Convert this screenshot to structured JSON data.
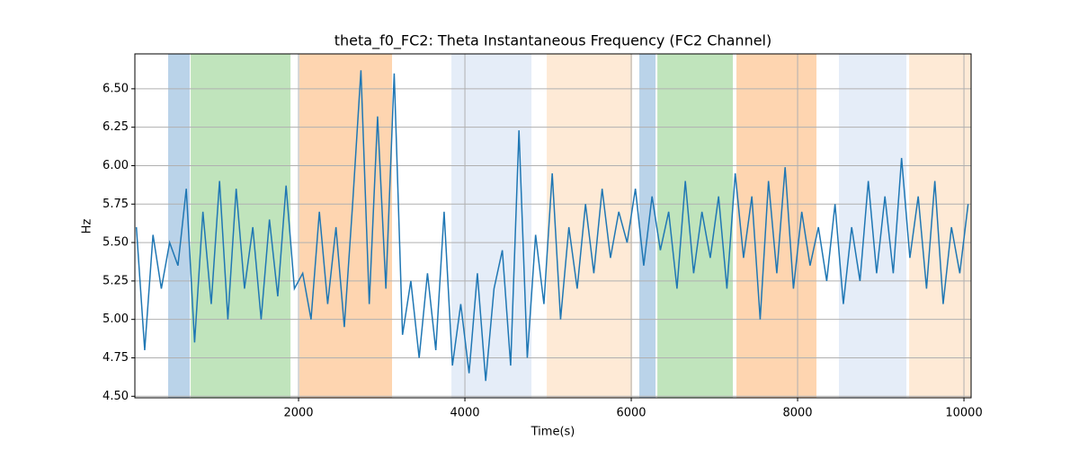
{
  "chart_data": {
    "type": "line",
    "title": "theta_f0_FC2: Theta Instantaneous Frequency (FC2 Channel)",
    "xlabel": "Time(s)",
    "ylabel": "Hz",
    "x": [
      50,
      150,
      250,
      350,
      450,
      550,
      650,
      750,
      850,
      950,
      1050,
      1150,
      1250,
      1350,
      1450,
      1550,
      1650,
      1750,
      1850,
      1950,
      2050,
      2150,
      2250,
      2350,
      2450,
      2550,
      2650,
      2750,
      2850,
      2950,
      3050,
      3150,
      3250,
      3350,
      3450,
      3550,
      3650,
      3750,
      3850,
      3950,
      4050,
      4150,
      4250,
      4350,
      4450,
      4550,
      4650,
      4750,
      4850,
      4950,
      5050,
      5150,
      5250,
      5350,
      5450,
      5550,
      5650,
      5750,
      5850,
      5950,
      6050,
      6150,
      6250,
      6350,
      6450,
      6550,
      6650,
      6750,
      6850,
      6950,
      7050,
      7150,
      7250,
      7350,
      7450,
      7550,
      7650,
      7750,
      7850,
      7950,
      8050,
      8150,
      8250,
      8350,
      8450,
      8550,
      8650,
      8750,
      8850,
      8950,
      9050,
      9150,
      9250,
      9350,
      9450,
      9550,
      9650,
      9750,
      9850,
      9950,
      10050
    ],
    "series": [
      {
        "color": "#1f77b4",
        "values": [
          5.6,
          4.8,
          5.55,
          5.2,
          5.5,
          5.35,
          5.85,
          4.85,
          5.7,
          5.1,
          5.9,
          5.0,
          5.85,
          5.2,
          5.6,
          5.0,
          5.65,
          5.15,
          5.87,
          5.2,
          5.3,
          5.0,
          5.7,
          5.1,
          5.6,
          4.95,
          5.75,
          6.62,
          5.1,
          6.32,
          5.2,
          6.6,
          4.9,
          5.25,
          4.75,
          5.3,
          4.8,
          5.7,
          4.7,
          5.1,
          4.65,
          5.3,
          4.6,
          5.2,
          5.45,
          4.7,
          6.23,
          4.75,
          5.55,
          5.1,
          5.95,
          5.0,
          5.6,
          5.2,
          5.75,
          5.3,
          5.85,
          5.4,
          5.7,
          5.5,
          5.85,
          5.35,
          5.8,
          5.45,
          5.7,
          5.2,
          5.9,
          5.3,
          5.7,
          5.4,
          5.8,
          5.2,
          5.95,
          5.4,
          5.8,
          5.0,
          5.9,
          5.3,
          5.99,
          5.2,
          5.7,
          5.35,
          5.6,
          5.25,
          5.75,
          5.1,
          5.6,
          5.25,
          5.9,
          5.3,
          5.8,
          5.3,
          6.05,
          5.4,
          5.8,
          5.2,
          5.9,
          5.1,
          5.6,
          5.3,
          5.75
        ]
      }
    ],
    "spans": [
      {
        "start": 432,
        "end": 692,
        "color": "#bad3e9"
      },
      {
        "start": 703,
        "end": 1903,
        "color": "#c0e4bc"
      },
      {
        "start": 2011,
        "end": 3124,
        "color": "#fed5b0"
      },
      {
        "start": 3838,
        "end": 4800,
        "color": "#e5edf8"
      },
      {
        "start": 4984,
        "end": 6011,
        "color": "#feead6"
      },
      {
        "start": 6097,
        "end": 6292,
        "color": "#bad3e9"
      },
      {
        "start": 6314,
        "end": 7222,
        "color": "#c0e4bc"
      },
      {
        "start": 7265,
        "end": 8227,
        "color": "#fed5b0"
      },
      {
        "start": 8497,
        "end": 9308,
        "color": "#e5edf8"
      },
      {
        "start": 9341,
        "end": 10086,
        "color": "#feead6"
      }
    ],
    "xlim": [
      32,
      10086
    ],
    "ylim": [
      4.49,
      6.727
    ],
    "xticks": [
      2000,
      4000,
      6000,
      8000,
      10000
    ],
    "yticks": [
      {
        "value": 4.5,
        "label": "4.50"
      },
      {
        "value": 4.75,
        "label": "4.75"
      },
      {
        "value": 5,
        "label": "5.00"
      },
      {
        "value": 5.25,
        "label": "5.25"
      },
      {
        "value": 5.5,
        "label": "5.50"
      },
      {
        "value": 5.75,
        "label": "5.75"
      },
      {
        "value": 6,
        "label": "6.00"
      },
      {
        "value": 6.25,
        "label": "6.25"
      },
      {
        "value": 6.5,
        "label": "6.50"
      }
    ],
    "grid": true
  }
}
